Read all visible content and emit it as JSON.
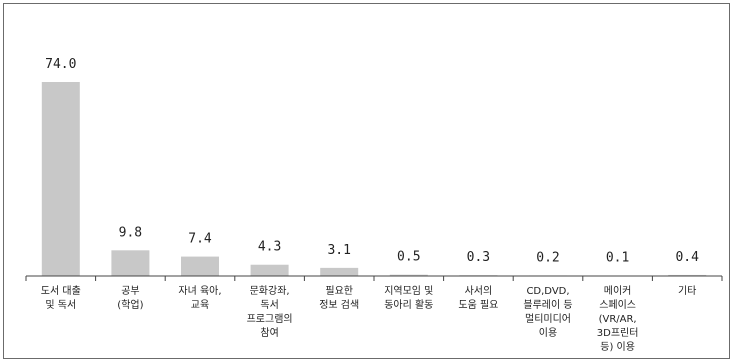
{
  "chart_data": {
    "type": "bar",
    "title": "",
    "xlabel": "",
    "ylabel": "",
    "ylim": [
      0,
      80
    ],
    "grid": false,
    "legend": "none",
    "bar_color": "#c8c8c8",
    "axis_color": "#444444",
    "categories": [
      [
        "도서 대출",
        "및 독서"
      ],
      [
        "공부",
        "(학업)"
      ],
      [
        "자녀 육아,",
        "교육"
      ],
      [
        "문화강좌,",
        "독서",
        "프로그램의",
        "참여"
      ],
      [
        "필요한",
        "정보 검색"
      ],
      [
        "지역모임 및",
        "동아리 활동"
      ],
      [
        "사서의",
        "도움 필요"
      ],
      [
        "CD,DVD,",
        "블루레이 등",
        "멀티미디어",
        "이용"
      ],
      [
        "메이커",
        "스페이스",
        "(VR/AR,",
        "3D프린터",
        "등) 이용"
      ],
      [
        "기타"
      ]
    ],
    "values": [
      74.0,
      9.8,
      7.4,
      4.3,
      3.1,
      0.5,
      0.3,
      0.2,
      0.1,
      0.4
    ],
    "value_labels": [
      "74.0",
      "9.8",
      "7.4",
      "4.3",
      "3.1",
      "0.5",
      "0.3",
      "0.2",
      "0.1",
      "0.4"
    ]
  }
}
